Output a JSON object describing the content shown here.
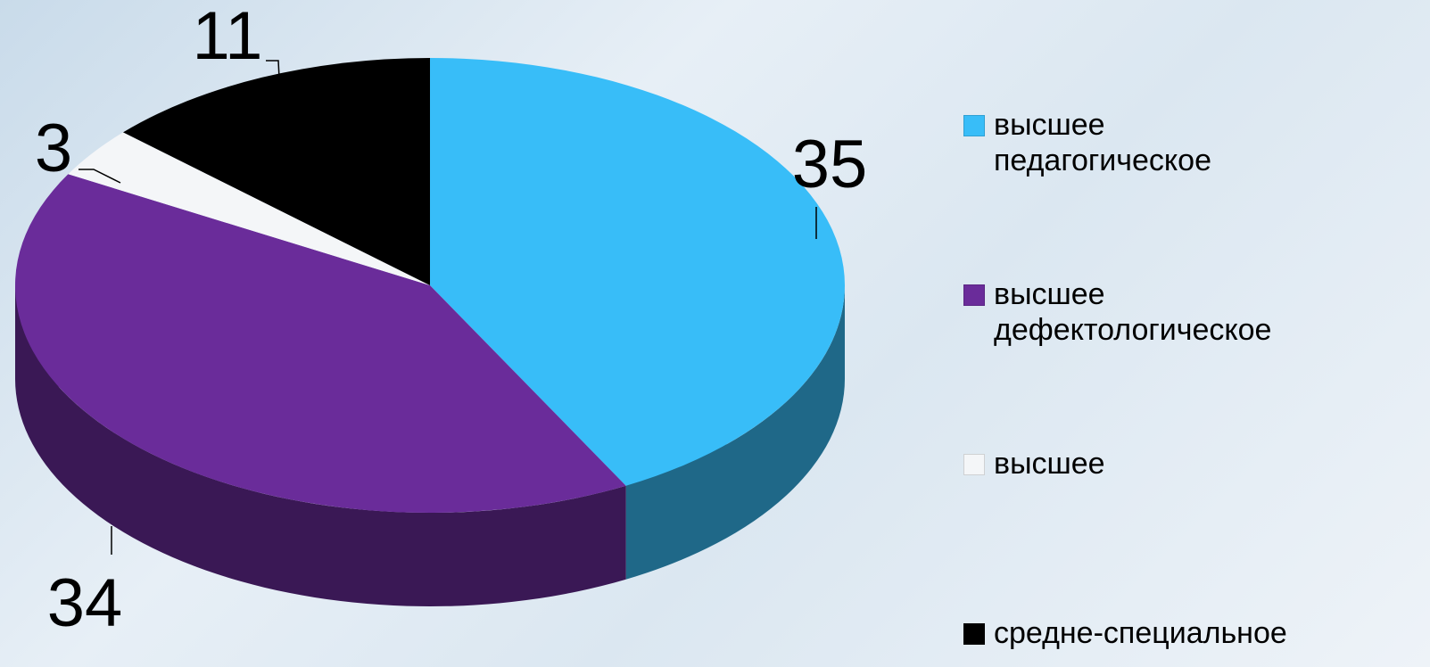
{
  "chart_data": {
    "type": "pie",
    "categories": [
      "высшее педагогическое",
      "высшее дефектологическое",
      "высшее",
      "средне-специальное"
    ],
    "values": [
      35,
      34,
      3,
      11
    ],
    "colors": [
      "#38bdf8",
      "#6a2c9a",
      "#f4f6f8",
      "#000000"
    ]
  }
}
